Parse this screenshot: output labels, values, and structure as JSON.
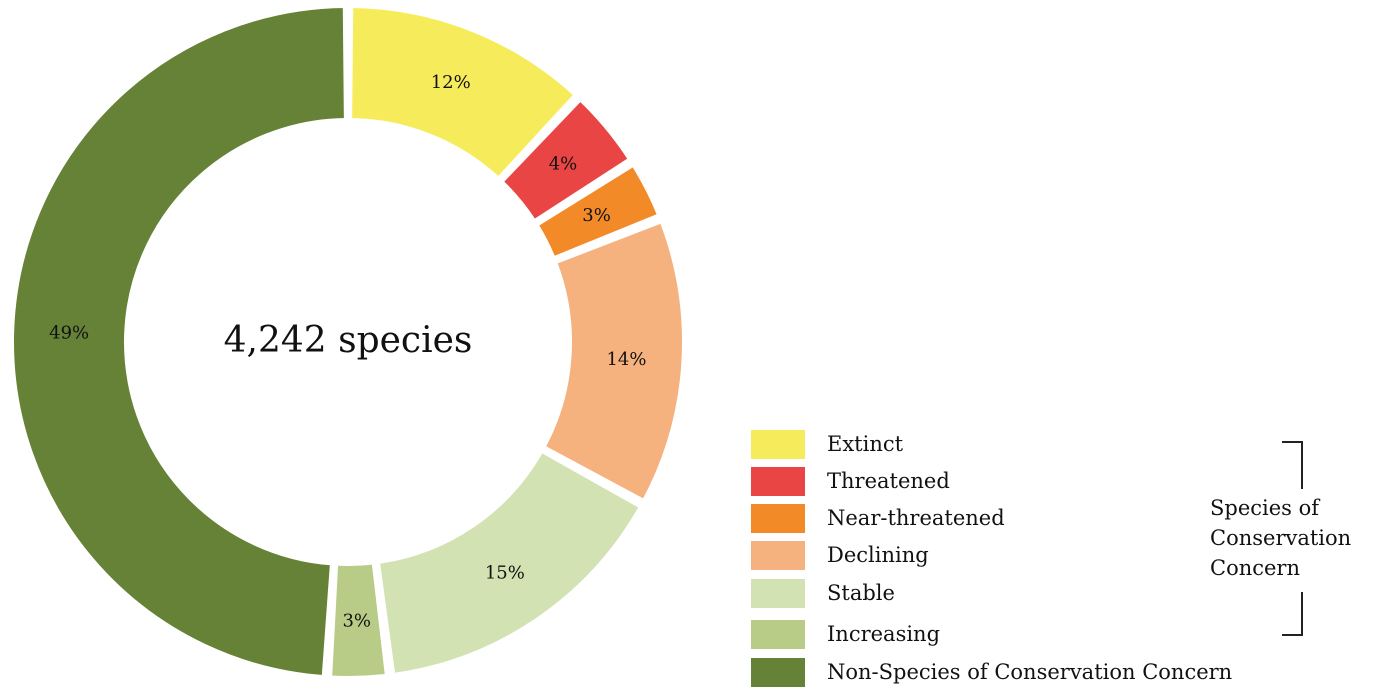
{
  "chart_data": {
    "type": "donut",
    "center_text": "4,242 species",
    "categories": [
      "Extinct",
      "Threatened",
      "Near-threatened",
      "Declining",
      "Stable",
      "Increasing",
      "Non-Species of Conservation Concern"
    ],
    "values": [
      12,
      4,
      3,
      14,
      15,
      3,
      49
    ],
    "data_labels": [
      "12%",
      "4%",
      "3%",
      "14%",
      "15%",
      "3%",
      "49%"
    ],
    "colors": [
      "#F6EC5B",
      "#EA4545",
      "#F28A28",
      "#F5B27E",
      "#D2E2B2",
      "#B8CC88",
      "#658237"
    ],
    "legend_position": "bottom-right",
    "bracket_label": "Species of Conservation Concern"
  }
}
